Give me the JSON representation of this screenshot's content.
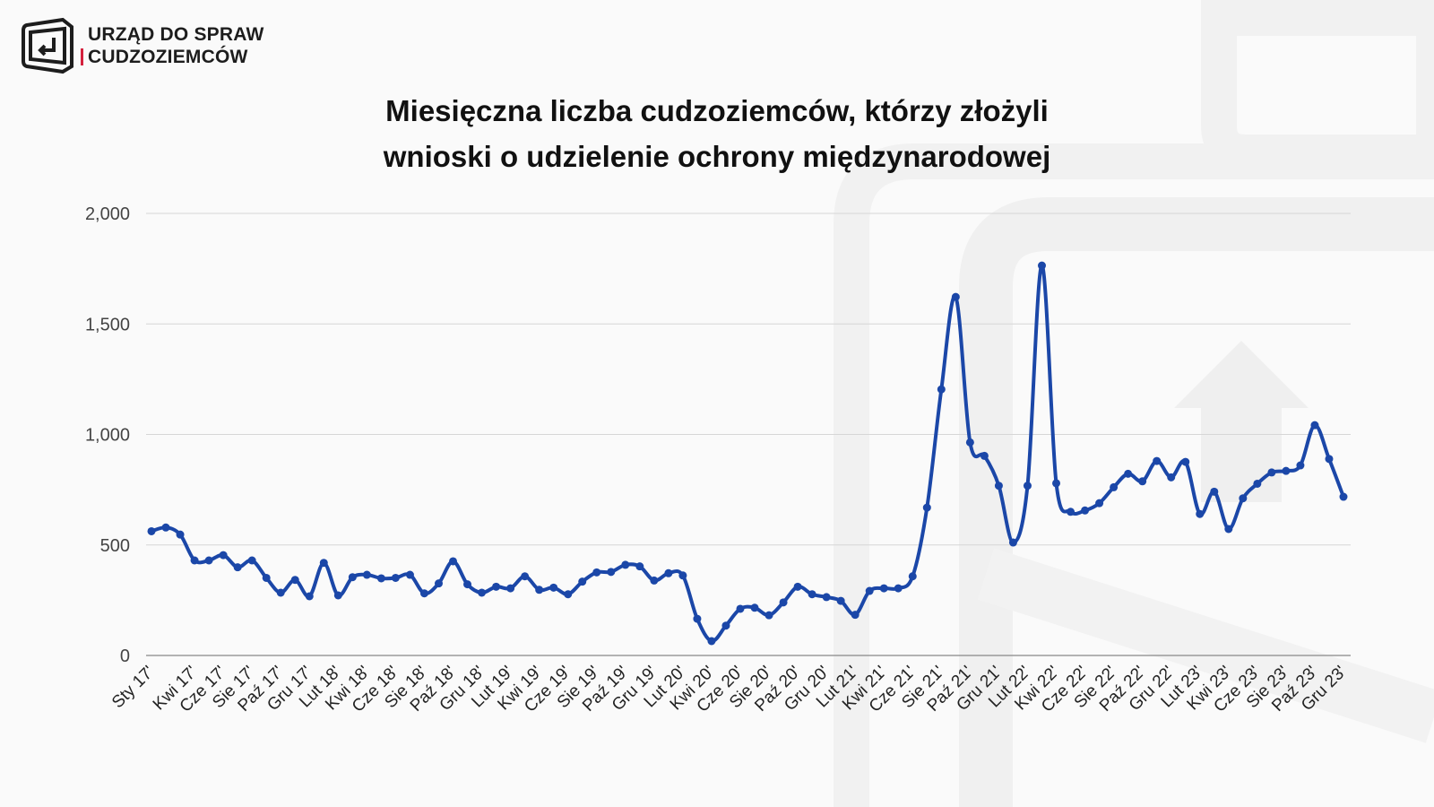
{
  "header": {
    "org_line1": "URZĄD DO SPRAW",
    "org_line2": "CUDZOZIEMCÓW",
    "logo_icon": "arrow-return-square-icon"
  },
  "chart_data": {
    "type": "line",
    "title_line1": "Miesięczna liczba cudzoziemców, którzy złożyli",
    "title_line2": "wnioski o udzielenie ochrony międzynarodowej",
    "xlabel": "",
    "ylabel": "",
    "ylim": [
      0,
      2000
    ],
    "y_ticks": [
      {
        "v": 0,
        "label": "0"
      },
      {
        "v": 500,
        "label": "500"
      },
      {
        "v": 1000,
        "label": "1,000"
      },
      {
        "v": 1500,
        "label": "1,500"
      },
      {
        "v": 2000,
        "label": "2,000"
      }
    ],
    "grid": true,
    "smooth": true,
    "markers": true,
    "line_color": "#1b47a8",
    "values": [
      562,
      579,
      547,
      430,
      430,
      454,
      399,
      430,
      351,
      284,
      342,
      268,
      419,
      272,
      354,
      365,
      349,
      351,
      365,
      281,
      326,
      426,
      322,
      284,
      311,
      304,
      358,
      297,
      307,
      277,
      334,
      376,
      378,
      410,
      403,
      339,
      372,
      362,
      166,
      65,
      135,
      211,
      216,
      182,
      240,
      311,
      277,
      264,
      247,
      184,
      292,
      304,
      304,
      358,
      669,
      1204,
      1622,
      964,
      903,
      768,
      511,
      768,
      1764,
      779,
      650,
      656,
      689,
      761,
      822,
      788,
      880,
      806,
      876,
      640,
      741,
      572,
      711,
      777,
      828,
      835,
      860,
      1042,
      889,
      718
    ],
    "x_ticks": [
      {
        "i": 0,
        "label": "Sty 17'"
      },
      {
        "i": 3,
        "label": "Kwi 17'"
      },
      {
        "i": 5,
        "label": "Cze 17'"
      },
      {
        "i": 7,
        "label": "Sie 17'"
      },
      {
        "i": 9,
        "label": "Paź 17'"
      },
      {
        "i": 11,
        "label": "Gru 17'"
      },
      {
        "i": 13,
        "label": "Lut 18'"
      },
      {
        "i": 15,
        "label": "Kwi 18'"
      },
      {
        "i": 17,
        "label": "Cze 18'"
      },
      {
        "i": 19,
        "label": "Sie 18'"
      },
      {
        "i": 21,
        "label": "Paź 18'"
      },
      {
        "i": 23,
        "label": "Gru 18'"
      },
      {
        "i": 25,
        "label": "Lut 19'"
      },
      {
        "i": 27,
        "label": "Kwi 19'"
      },
      {
        "i": 29,
        "label": "Cze 19'"
      },
      {
        "i": 31,
        "label": "Sie 19'"
      },
      {
        "i": 33,
        "label": "Paź 19'"
      },
      {
        "i": 35,
        "label": "Gru 19'"
      },
      {
        "i": 37,
        "label": "Lut 20'"
      },
      {
        "i": 39,
        "label": "Kwi 20'"
      },
      {
        "i": 41,
        "label": "Cze 20'"
      },
      {
        "i": 43,
        "label": "Sie 20'"
      },
      {
        "i": 45,
        "label": "Paź 20'"
      },
      {
        "i": 47,
        "label": "Gru 20'"
      },
      {
        "i": 49,
        "label": "Lut 21'"
      },
      {
        "i": 51,
        "label": "Kwi 21'"
      },
      {
        "i": 53,
        "label": "Cze 21'"
      },
      {
        "i": 55,
        "label": "Sie 21'"
      },
      {
        "i": 57,
        "label": "Paź 21'"
      },
      {
        "i": 59,
        "label": "Gru 21'"
      },
      {
        "i": 61,
        "label": "Lut 22'"
      },
      {
        "i": 63,
        "label": "Kwi 22'"
      },
      {
        "i": 65,
        "label": "Cze 22'"
      },
      {
        "i": 67,
        "label": "Sie 22'"
      },
      {
        "i": 69,
        "label": "Paź 22'"
      },
      {
        "i": 71,
        "label": "Gru 22'"
      },
      {
        "i": 73,
        "label": "Lut 23'"
      },
      {
        "i": 75,
        "label": "Kwi 23'"
      },
      {
        "i": 77,
        "label": "Cze 23'"
      },
      {
        "i": 79,
        "label": "Sie 23'"
      },
      {
        "i": 81,
        "label": "Paź 23'"
      },
      {
        "i": 83,
        "label": "Gru 23'"
      }
    ]
  }
}
